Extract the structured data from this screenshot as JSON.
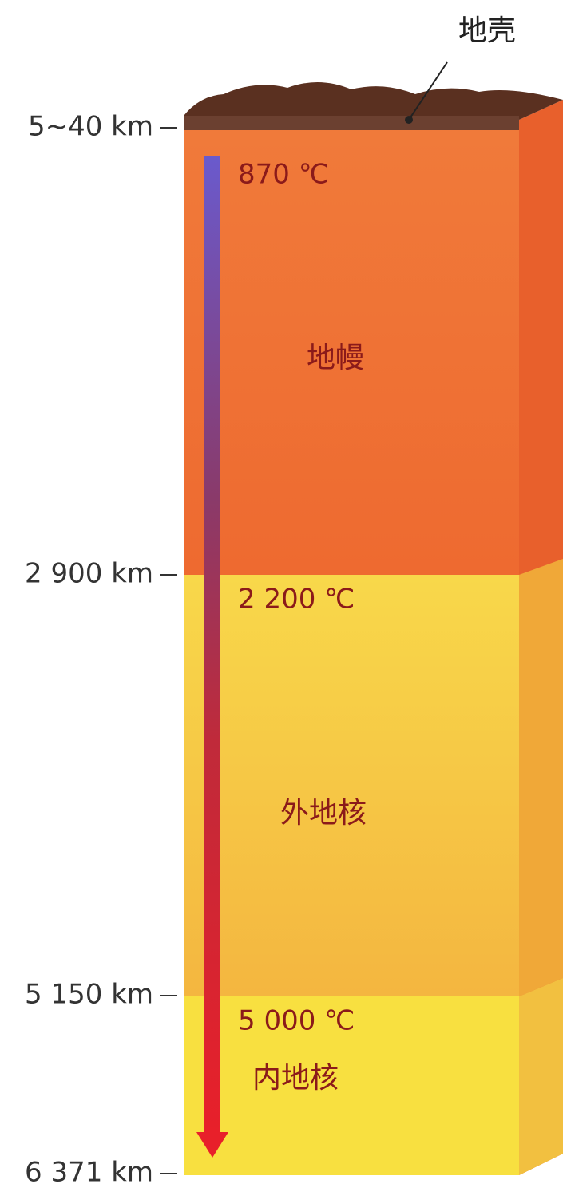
{
  "crust": {
    "label": "地壳",
    "depth": "5~40 km"
  },
  "layers": [
    {
      "name": "地幔",
      "top_temperature": "870 ℃",
      "bottom_depth": "2 900 km"
    },
    {
      "name": "外地核",
      "top_temperature": "2 200 ℃",
      "bottom_depth": "5 150 km"
    },
    {
      "name": "内地核",
      "top_temperature": "5 000 ℃",
      "bottom_depth": "6 371 km"
    }
  ]
}
